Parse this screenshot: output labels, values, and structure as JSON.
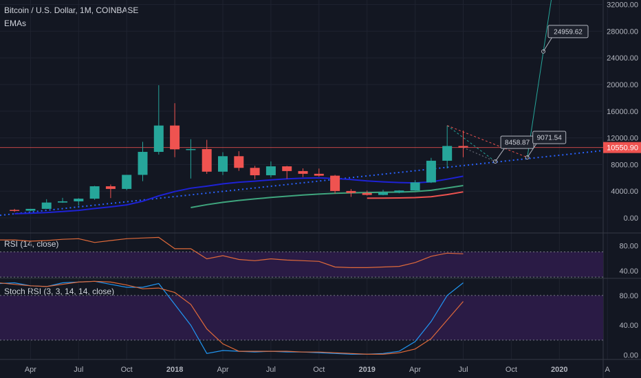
{
  "header": {
    "symbol_title": "Bitcoin / U.S. Dollar, 1M, COINBASE",
    "indicator_label": "EMAs"
  },
  "panes": {
    "rsi_title": "RSI (14, close)",
    "stoch_title": "Stoch RSI (3, 3, 14, 14, close)"
  },
  "colors": {
    "background": "#131722",
    "grid": "#1f2330",
    "up_candle": "#26a69a",
    "down_candle": "#ef5350",
    "ema_fast": "#1e22d6",
    "ema_mid": "#3fa67e",
    "ema_slow": "#ef5350",
    "price_line": "#ef5350",
    "rsi_line": "#e06a3a",
    "stoch_k": "#2196f3",
    "stoch_d": "#e06a3a",
    "band_fill": "#2a1b45",
    "trend_dotted": "#2962ff",
    "projection": "#26a69a"
  },
  "chart_data": [
    {
      "type": "candlestick",
      "title": "Bitcoin / U.S. Dollar, 1M, COINBASE",
      "x": [
        "2017-03",
        "2017-04",
        "2017-05",
        "2017-06",
        "2017-07",
        "2017-08",
        "2017-09",
        "2017-10",
        "2017-11",
        "2017-12",
        "2018-01",
        "2018-02",
        "2018-03",
        "2018-04",
        "2018-05",
        "2018-06",
        "2018-07",
        "2018-08",
        "2018-09",
        "2018-10",
        "2018-11",
        "2018-12",
        "2019-01",
        "2019-02",
        "2019-03",
        "2019-04",
        "2019-05",
        "2019-06",
        "2019-07"
      ],
      "open": [
        1190,
        1080,
        1350,
        2300,
        2480,
        2880,
        4740,
        4340,
        6450,
        9900,
        13850,
        10280,
        10320,
        6930,
        9250,
        7500,
        6390,
        7730,
        7020,
        6610,
        6330,
        4030,
        3740,
        3440,
        3830,
        4100,
        5320,
        8570,
        10780
      ],
      "high": [
        1350,
        1350,
        2800,
        3000,
        2950,
        4800,
        5000,
        6450,
        11400,
        19900,
        17200,
        11800,
        11700,
        9850,
        10000,
        7800,
        8470,
        7800,
        7420,
        7400,
        6450,
        4320,
        4100,
        4210,
        4150,
        5650,
        9000,
        13850,
        13100
      ],
      "low": [
        890,
        1000,
        1340,
        2260,
        1840,
        2700,
        2970,
        4160,
        5500,
        9500,
        9100,
        5900,
        6600,
        6430,
        7050,
        5800,
        6070,
        5860,
        6120,
        6180,
        3650,
        3150,
        3350,
        3390,
        3690,
        4050,
        5230,
        7420,
        9100
      ],
      "close": [
        1080,
        1350,
        2300,
        2480,
        2880,
        4740,
        4340,
        6450,
        9900,
        13850,
        10280,
        10320,
        6930,
        9250,
        7500,
        6390,
        7730,
        7020,
        6610,
        6330,
        4030,
        3740,
        3440,
        3830,
        4100,
        5320,
        8570,
        10780,
        10550
      ],
      "ema_fast": [
        620,
        690,
        790,
        950,
        1120,
        1400,
        1650,
        1950,
        2500,
        3300,
        3950,
        4450,
        4750,
        5100,
        5350,
        5500,
        5700,
        5850,
        5950,
        6000,
        5900,
        5750,
        5550,
        5400,
        5300,
        5250,
        5400,
        5800,
        6250
      ],
      "ema_mid": [
        null,
        null,
        null,
        null,
        null,
        null,
        null,
        null,
        null,
        null,
        null,
        1550,
        1980,
        2330,
        2620,
        2850,
        3060,
        3250,
        3420,
        3570,
        3680,
        3750,
        3800,
        3830,
        3870,
        3950,
        4130,
        4480,
        4850
      ],
      "ema_slow": [
        null,
        null,
        null,
        null,
        null,
        null,
        null,
        null,
        null,
        null,
        null,
        null,
        null,
        null,
        null,
        null,
        null,
        null,
        null,
        null,
        null,
        null,
        2950,
        2960,
        2990,
        3040,
        3180,
        3500,
        3900
      ],
      "y_ticks": [
        "0.00",
        "4000.00",
        "8000.00",
        "12000.00",
        "16000.00",
        "20000.00",
        "24000.00",
        "28000.00",
        "32000.00"
      ],
      "ylim": [
        -1200,
        32800
      ],
      "last_price": "10550.90",
      "annotations": [
        {
          "label": "8458.87",
          "x": "2019-09",
          "y": 8458.87
        },
        {
          "label": "9071.54",
          "x": "2019-11",
          "y": 9071.54
        },
        {
          "label": "24959.62",
          "x": "2019-12",
          "y": 24959.62
        }
      ]
    },
    {
      "type": "line",
      "title": "RSI (14, close)",
      "x": [
        "2017-01",
        "2017-02",
        "2017-03",
        "2017-04",
        "2017-05",
        "2017-06",
        "2017-07",
        "2017-08",
        "2017-09",
        "2017-10",
        "2017-11",
        "2017-12",
        "2018-01",
        "2018-02",
        "2018-03",
        "2018-04",
        "2018-05",
        "2018-06",
        "2018-07",
        "2018-08",
        "2018-09",
        "2018-10",
        "2018-11",
        "2018-12",
        "2019-01",
        "2019-02",
        "2019-03",
        "2019-04",
        "2019-05",
        "2019-06",
        "2019-07"
      ],
      "values": [
        88,
        89,
        89,
        87,
        88,
        90,
        91,
        85,
        88,
        91,
        92,
        93,
        75,
        75,
        59,
        64,
        58,
        56,
        59,
        57,
        56,
        55,
        46,
        45,
        45,
        46,
        47,
        53,
        63,
        68,
        67
      ],
      "y_ticks": [
        "40.00",
        "80.00"
      ],
      "ylim": [
        28,
        100
      ],
      "bands": [
        30,
        70
      ]
    },
    {
      "type": "line",
      "title": "Stoch RSI (3, 3, 14, 14, close)",
      "x": [
        "2017-01",
        "2017-02",
        "2017-03",
        "2017-04",
        "2017-05",
        "2017-06",
        "2017-07",
        "2017-08",
        "2017-09",
        "2017-10",
        "2017-11",
        "2017-12",
        "2018-01",
        "2018-02",
        "2018-03",
        "2018-04",
        "2018-05",
        "2018-06",
        "2018-07",
        "2018-08",
        "2018-09",
        "2018-10",
        "2018-11",
        "2018-12",
        "2019-01",
        "2019-02",
        "2019-03",
        "2019-04",
        "2019-05",
        "2019-06",
        "2019-07"
      ],
      "series": [
        {
          "values": [
            98,
            96,
            97,
            93,
            92,
            97,
            98,
            99,
            95,
            91,
            91,
            96,
            68,
            40,
            2,
            6,
            5,
            4,
            5,
            4,
            4,
            3,
            2,
            1,
            1,
            2,
            5,
            18,
            45,
            80,
            97
          ]
        },
        {
          "values": [
            97,
            97,
            95,
            93,
            92,
            95,
            98,
            99,
            98,
            94,
            89,
            90,
            84,
            68,
            35,
            15,
            5,
            5,
            5,
            5,
            4,
            4,
            3,
            2,
            1,
            1,
            3,
            8,
            22,
            47,
            72
          ]
        }
      ],
      "y_ticks": [
        "0.00",
        "40.00",
        "80.00"
      ],
      "ylim": [
        -6,
        103
      ],
      "bands": [
        20,
        80
      ]
    }
  ],
  "x_axis": {
    "labels": [
      "Apr",
      "Jul",
      "Oct",
      "2018",
      "Apr",
      "Jul",
      "Oct",
      "2019",
      "Apr",
      "Jul",
      "Oct",
      "2020",
      "A"
    ],
    "bold": [
      "2018",
      "2019",
      "2020"
    ]
  }
}
